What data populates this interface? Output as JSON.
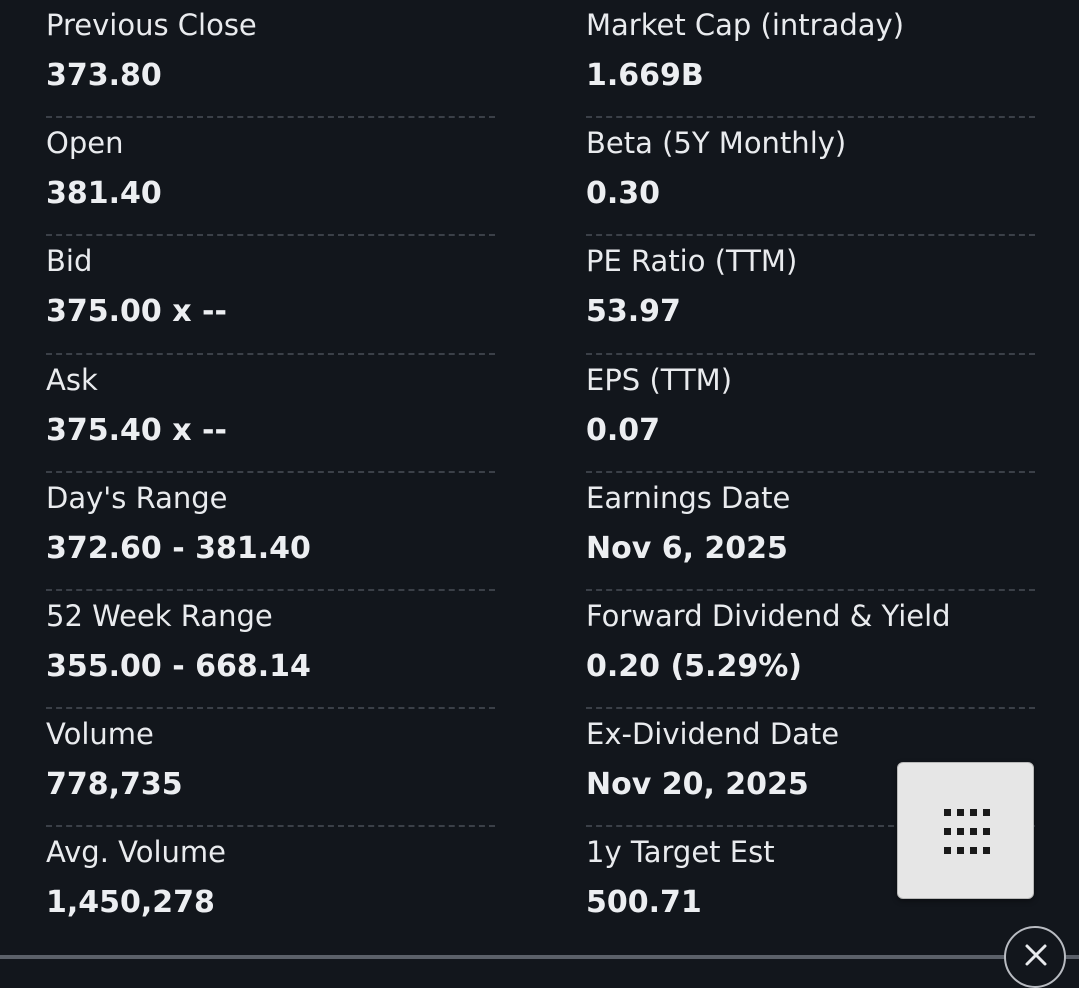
{
  "quote_stats": {
    "left": [
      {
        "label": "Previous Close",
        "value": "373.80"
      },
      {
        "label": "Open",
        "value": "381.40"
      },
      {
        "label": "Bid",
        "value": "375.00 x --"
      },
      {
        "label": "Ask",
        "value": "375.40 x --"
      },
      {
        "label": "Day's Range",
        "value": "372.60 - 381.40"
      },
      {
        "label": "52 Week Range",
        "value": "355.00 - 668.14"
      },
      {
        "label": "Volume",
        "value": "778,735"
      },
      {
        "label": "Avg. Volume",
        "value": "1,450,278"
      }
    ],
    "right": [
      {
        "label": "Market Cap (intraday)",
        "value": "1.669B"
      },
      {
        "label": "Beta (5Y Monthly)",
        "value": "0.30"
      },
      {
        "label": "PE Ratio (TTM)",
        "value": "53.97"
      },
      {
        "label": "EPS (TTM)",
        "value": "0.07"
      },
      {
        "label": "Earnings Date",
        "value": "Nov 6, 2025"
      },
      {
        "label": "Forward Dividend & Yield",
        "value": "0.20 (5.29%)"
      },
      {
        "label": "Ex-Dividend Date",
        "value": "Nov 20, 2025"
      },
      {
        "label": "1y Target Est",
        "value": "500.71"
      }
    ]
  },
  "controls": {
    "grid_button_icon": "grid-dots-icon",
    "close_button_icon": "close-icon"
  },
  "colors": {
    "background": "#12161c",
    "text": "#e9ebee",
    "divider": "#3b4048",
    "fab_background": "#e6e6e6"
  }
}
